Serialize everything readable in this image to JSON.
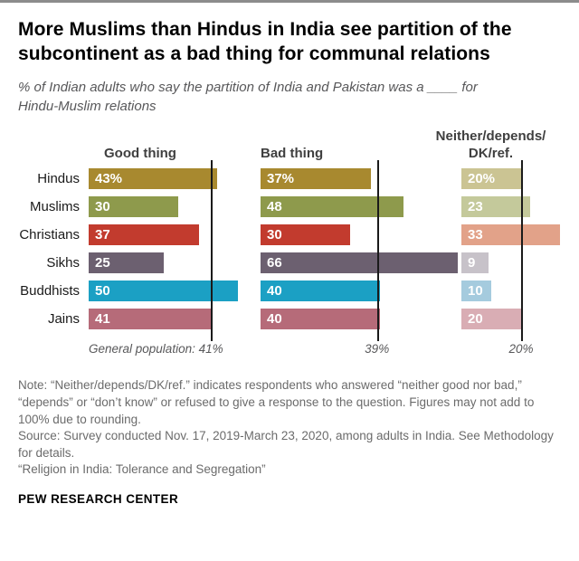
{
  "header": {
    "title": "More Muslims than Hindus in India see partition of the subcontinent as a bad thing for communal relations",
    "subtitle": "% of Indian adults who say the partition of India and Pakistan was a ____ for Hindu-Muslim relations"
  },
  "chart_data": {
    "type": "bar",
    "orientation": "horizontal",
    "unit": "%",
    "xlim": [
      0,
      70
    ],
    "grid": false,
    "legend_position": "column-headers",
    "categories": [
      "Hindus",
      "Muslims",
      "Christians",
      "Sikhs",
      "Buddhists",
      "Jains"
    ],
    "series": [
      {
        "name": "Good thing",
        "values": [
          43,
          30,
          37,
          25,
          50,
          41
        ],
        "value_labels": [
          "43%",
          "30",
          "37",
          "25",
          "50",
          "41"
        ],
        "general_population_value": 41,
        "general_population_label": "General population: 41%"
      },
      {
        "name": "Bad thing",
        "values": [
          37,
          48,
          30,
          66,
          40,
          40
        ],
        "value_labels": [
          "37%",
          "48",
          "30",
          "66",
          "40",
          "40"
        ],
        "general_population_value": 39,
        "general_population_label": "39%"
      },
      {
        "name": "Neither/depends/\nDK/ref.",
        "values": [
          20,
          23,
          33,
          9,
          10,
          20
        ],
        "value_labels": [
          "20%",
          "23",
          "33",
          "9",
          "10",
          "20"
        ],
        "general_population_value": 20,
        "general_population_label": "20%"
      }
    ],
    "row_colors_main": [
      "#A8892F",
      "#8E9A4C",
      "#C23B2E",
      "#6C6070",
      "#1BA0C4",
      "#B66B79"
    ],
    "row_colors_light": [
      "#CBC493",
      "#C4C99B",
      "#E2A289",
      "#C7C2C9",
      "#A5CBDE",
      "#D9ADB4"
    ],
    "general_population_line_color": "#1a1a1a"
  },
  "footer": {
    "note": "Note: “Neither/depends/DK/ref.” indicates respondents who answered “neither good nor bad,” “depends” or “don’t know” or refused to give a response to the question. Figures may not add to 100% due to rounding.",
    "source": "Source: Survey conducted Nov. 17, 2019-March 23, 2020, among adults in India. See Methodology for details.",
    "report": "“Religion in India: Tolerance and Segregation”",
    "brand": "PEW RESEARCH CENTER"
  }
}
